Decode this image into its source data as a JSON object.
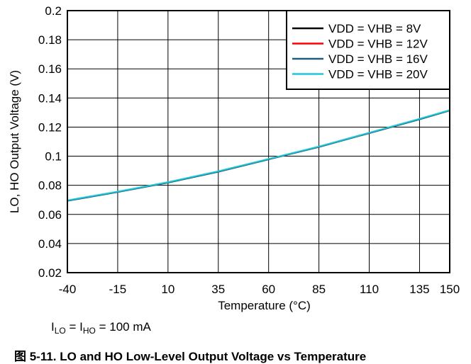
{
  "chart_data": {
    "type": "line",
    "xlabel": "Temperature (°C)",
    "ylabel": "LO, HO Output Voltage (V)",
    "x_ticks": [
      "-40",
      "-15",
      "10",
      "35",
      "60",
      "85",
      "110",
      "135",
      "150"
    ],
    "y_ticks": [
      "0.02",
      "0.04",
      "0.06",
      "0.08",
      "0.1",
      "0.12",
      "0.14",
      "0.16",
      "0.18",
      "0.2"
    ],
    "xlim": [
      -40,
      150
    ],
    "ylim": [
      0.02,
      0.2
    ],
    "grid": true,
    "legend_position": "top-right",
    "x": [
      -40,
      -15,
      10,
      35,
      60,
      85,
      110,
      135,
      150
    ],
    "series": [
      {
        "name": "VDD = VHB = 8V",
        "color": "#000000",
        "values": [
          0.0695,
          0.0755,
          0.082,
          0.0895,
          0.098,
          0.1065,
          0.116,
          0.1255,
          0.1315
        ]
      },
      {
        "name": "VDD = VHB = 12V",
        "color": "#ff0000",
        "values": [
          0.0695,
          0.0755,
          0.082,
          0.0895,
          0.098,
          0.1065,
          0.116,
          0.1255,
          0.1315
        ]
      },
      {
        "name": "VDD = VHB = 16V",
        "color": "#1f5f7a",
        "values": [
          0.0693,
          0.0753,
          0.0818,
          0.0893,
          0.0978,
          0.1063,
          0.1158,
          0.1253,
          0.1313
        ]
      },
      {
        "name": "VDD = VHB = 20V",
        "color": "#1ec8d8",
        "values": [
          0.0697,
          0.0757,
          0.0822,
          0.0897,
          0.0982,
          0.1067,
          0.1162,
          0.1257,
          0.1317
        ]
      }
    ]
  },
  "note": {
    "i1": "I",
    "s1": "LO",
    "mid": " = I",
    "s2": "HO",
    "rest": " = 100 mA"
  },
  "caption": "图 5-11. LO and HO Low-Level Output Voltage vs Temperature"
}
